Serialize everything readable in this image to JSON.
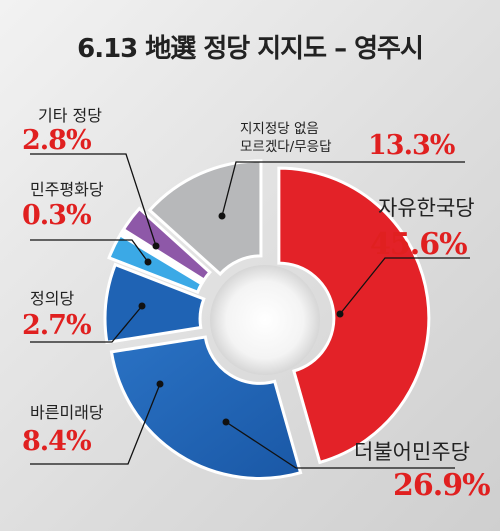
{
  "chart_data": {
    "type": "pie",
    "title": "6.13 地選 정당 지지도 – 영주시",
    "categories": [
      "자유한국당",
      "더불어민주당",
      "바른미래당",
      "정의당",
      "민주평화당",
      "기타 정당",
      "지지정당 없음 모르겠다/무응답"
    ],
    "values": [
      45.6,
      26.9,
      8.4,
      2.7,
      0.3,
      2.8,
      13.3
    ],
    "value_labels": [
      "45.6%",
      "26.9%",
      "8.4%",
      "2.7%",
      "0.3%",
      "2.8%",
      "13.3%"
    ],
    "label_lines": [
      [
        "자유한국당"
      ],
      [
        "더불어민주당"
      ],
      [
        "바른미래당"
      ],
      [
        "정의당"
      ],
      [
        "민주평화당"
      ],
      [
        "기타 정당"
      ],
      [
        "지지정당 없음",
        "모르겠다/무응답"
      ]
    ],
    "colors": [
      "#e32228",
      "#1f63b4",
      "#1f63b4",
      "#3ba9e6",
      "#f3c51a",
      "#8e58a8",
      "#b7b8ba"
    ],
    "legend": "none"
  }
}
